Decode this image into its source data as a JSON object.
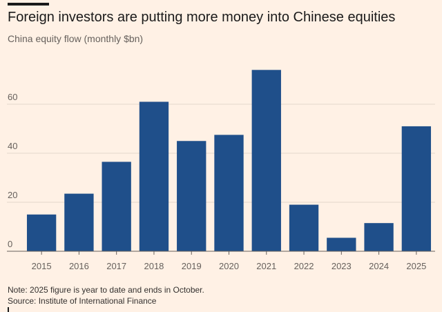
{
  "header": {
    "title": "Foreign investors are putting more money into Chinese equities",
    "subtitle": "China equity flow (monthly $bn)"
  },
  "footer": {
    "note": "Note: 2025 figure is year to date and ends in October.",
    "source": "Source: Institute of International Finance"
  },
  "colors": {
    "bar": "#1f4f8a",
    "grid": "#e3d8cc",
    "baseline": "#66605c",
    "background": "#fff1e5"
  },
  "chart_data": {
    "type": "bar",
    "title": "Foreign investors are putting more money into Chinese equities",
    "subtitle": "China equity flow (monthly $bn)",
    "xlabel": "",
    "ylabel": "",
    "categories": [
      "2015",
      "2016",
      "2017",
      "2018",
      "2019",
      "2020",
      "2021",
      "2022",
      "2023",
      "2024",
      "2025"
    ],
    "values": [
      15,
      23.5,
      36.5,
      61,
      45,
      47.5,
      74,
      19,
      5.5,
      11.5,
      51
    ],
    "ylim": [
      0,
      80
    ],
    "yticks": [
      0,
      20,
      40,
      60
    ],
    "grid": true,
    "legend": "none"
  }
}
